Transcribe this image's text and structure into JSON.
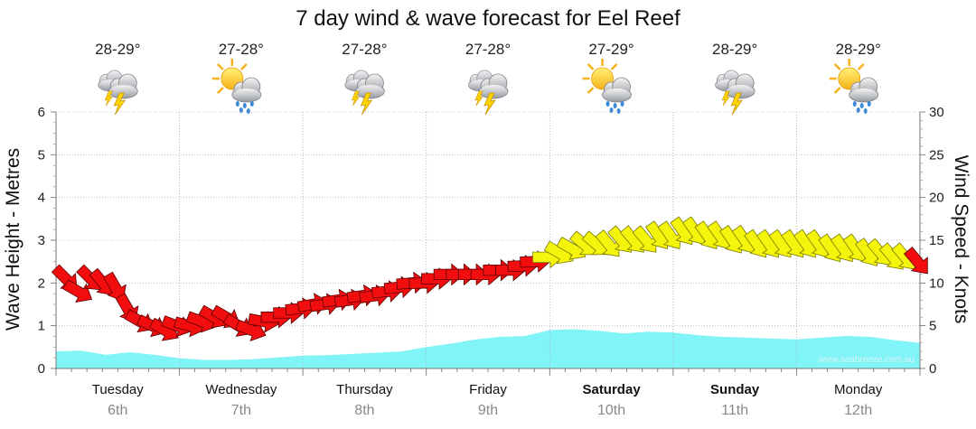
{
  "chart_data": {
    "type": "line",
    "title": "7 day wind & wave forecast for Eel Reef",
    "ylabel_left": "Wave Height - Metres",
    "ylabel_right": "Wind Speed - Knots",
    "ylim_left": [
      0,
      6
    ],
    "ylim_right": [
      0,
      30
    ],
    "yticks_left": [
      "0",
      "1",
      "2",
      "3",
      "4",
      "5",
      "6"
    ],
    "yticks_right": [
      "0",
      "5",
      "10",
      "15",
      "20",
      "25",
      "30"
    ],
    "grid": true,
    "watermark": "www.seabreeze.com.au",
    "colors": {
      "wave": "#80f4f6",
      "wind_strong": "#f20e0e",
      "wind_light": "#f4f40c"
    },
    "days": [
      {
        "name": "Tuesday",
        "date": "6th",
        "bold": false,
        "temp": "28-29°",
        "weather_icon": "cloud-storm-icon"
      },
      {
        "name": "Wednesday",
        "date": "7th",
        "bold": false,
        "temp": "27-28°",
        "weather_icon": "sun-cloud-rain-icon"
      },
      {
        "name": "Thursday",
        "date": "8th",
        "bold": false,
        "temp": "27-28°",
        "weather_icon": "cloud-storm-icon"
      },
      {
        "name": "Friday",
        "date": "9th",
        "bold": false,
        "temp": "27-28°",
        "weather_icon": "cloud-storm-icon"
      },
      {
        "name": "Saturday",
        "date": "10th",
        "bold": true,
        "temp": "27-29°",
        "weather_icon": "sun-cloud-rain-icon"
      },
      {
        "name": "Sunday",
        "date": "11th",
        "bold": true,
        "temp": "28-29°",
        "weather_icon": "cloud-storm-icon"
      },
      {
        "name": "Monday",
        "date": "12th",
        "bold": false,
        "temp": "28-29°",
        "weather_icon": "sun-cloud-rain-icon"
      }
    ],
    "wave_series": {
      "name": "Wave Height",
      "x_days": [
        0,
        0.2,
        0.4,
        0.6,
        0.8,
        1.0,
        1.2,
        1.4,
        1.6,
        1.8,
        2.0,
        2.2,
        2.4,
        2.6,
        2.8,
        3.0,
        3.2,
        3.4,
        3.6,
        3.8,
        4.0,
        4.2,
        4.4,
        4.6,
        4.8,
        5.0,
        5.2,
        5.4,
        5.6,
        5.8,
        6.0,
        6.2,
        6.4,
        6.6,
        6.8,
        7.0
      ],
      "values": [
        0.4,
        0.42,
        0.32,
        0.38,
        0.32,
        0.24,
        0.2,
        0.2,
        0.22,
        0.26,
        0.3,
        0.31,
        0.34,
        0.37,
        0.4,
        0.5,
        0.58,
        0.68,
        0.74,
        0.76,
        0.9,
        0.92,
        0.88,
        0.82,
        0.86,
        0.84,
        0.78,
        0.74,
        0.72,
        0.7,
        0.68,
        0.72,
        0.76,
        0.74,
        0.66,
        0.6
      ]
    },
    "wind_series": {
      "name": "Wind Speed",
      "x_days": [
        0.0,
        0.1,
        0.2,
        0.3,
        0.4,
        0.5,
        0.6,
        0.7,
        0.8,
        0.9,
        1.0,
        1.1,
        1.2,
        1.3,
        1.4,
        1.5,
        1.6,
        1.7,
        1.8,
        1.9,
        2.0,
        2.1,
        2.2,
        2.3,
        2.4,
        2.5,
        2.6,
        2.7,
        2.8,
        2.9,
        3.0,
        3.1,
        3.2,
        3.3,
        3.4,
        3.5,
        3.6,
        3.7,
        3.8,
        3.9,
        4.0,
        4.1,
        4.2,
        4.3,
        4.4,
        4.5,
        4.6,
        4.7,
        4.8,
        4.9,
        5.0,
        5.1,
        5.2,
        5.3,
        5.4,
        5.5,
        5.6,
        5.7,
        5.8,
        5.9,
        6.0,
        6.1,
        6.2,
        6.3,
        6.4,
        6.5,
        6.6,
        6.7,
        6.8,
        6.9
      ],
      "values": [
        10.5,
        9.0,
        10.5,
        10.0,
        9.5,
        7.0,
        5.5,
        5.0,
        4.5,
        5.0,
        5.0,
        5.5,
        6.0,
        6.0,
        5.0,
        4.5,
        5.5,
        6.0,
        6.5,
        7.0,
        7.5,
        7.5,
        8.0,
        8.0,
        8.5,
        8.5,
        9.0,
        9.5,
        10.0,
        10.0,
        10.5,
        11.0,
        11.0,
        11.0,
        11.0,
        11.5,
        11.5,
        12.0,
        12.5,
        13.0,
        13.5,
        14.0,
        14.5,
        14.5,
        14.5,
        15.0,
        15.0,
        15.0,
        15.5,
        15.5,
        16.0,
        16.0,
        15.5,
        15.5,
        15.0,
        15.0,
        14.5,
        14.5,
        14.5,
        14.5,
        14.5,
        14.5,
        14.0,
        14.0,
        14.0,
        13.5,
        13.5,
        13.0,
        13.0,
        12.5
      ],
      "direction_deg": [
        315,
        300,
        315,
        320,
        330,
        330,
        300,
        295,
        300,
        290,
        285,
        290,
        300,
        300,
        300,
        290,
        280,
        270,
        270,
        265,
        260,
        262,
        262,
        262,
        262,
        262,
        265,
        265,
        265,
        268,
        270,
        270,
        270,
        270,
        270,
        270,
        270,
        268,
        268,
        270,
        300,
        300,
        310,
        310,
        320,
        320,
        320,
        320,
        325,
        325,
        325,
        325,
        325,
        325,
        325,
        325,
        325,
        325,
        325,
        325,
        325,
        325,
        325,
        325,
        325,
        325,
        320,
        320,
        320,
        320
      ],
      "color_threshold_knots": 13
    }
  }
}
